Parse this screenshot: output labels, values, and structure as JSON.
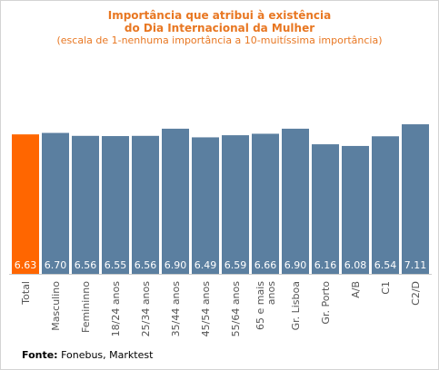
{
  "title_line1": "Importância que atribui à existência",
  "title_line2": "do Dia Internacional da Mulher",
  "subtitle": "(escala de 1-nenhuma importância a 10-muitíssima importância)",
  "source_label": "Fonte:",
  "source_text": "Fonebus, Marktest",
  "colors": {
    "highlight": "#ff6600",
    "bar": "#5b7fa0",
    "title": "#e87722"
  },
  "chart_data": {
    "type": "bar",
    "categories": [
      "Total",
      "Masculino",
      "Femininno",
      "18/24 anos",
      "25/34 anos",
      "35/44 anos",
      "45/54 anos",
      "55/64 anos",
      "65 e mais anos",
      "Gr. Lisboa",
      "Gr. Porto",
      "A/B",
      "C1",
      "C2/D"
    ],
    "values": [
      6.63,
      6.7,
      6.56,
      6.55,
      6.56,
      6.9,
      6.49,
      6.59,
      6.66,
      6.9,
      6.16,
      6.08,
      6.54,
      7.11
    ],
    "value_labels": [
      "6.63",
      "6.70",
      "6.56",
      "6.55",
      "6.56",
      "6.90",
      "6.49",
      "6.59",
      "6.66",
      "6.90",
      "6.16",
      "6.08",
      "6.54",
      "7.11"
    ],
    "highlight_index": 0,
    "ylim": [
      0,
      10
    ],
    "grid": false,
    "legend": "none"
  }
}
